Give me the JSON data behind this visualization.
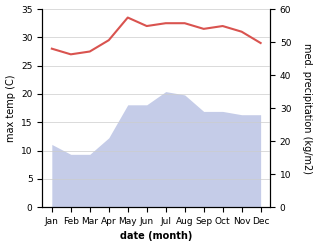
{
  "months": [
    "Jan",
    "Feb",
    "Mar",
    "Apr",
    "May",
    "Jun",
    "Jul",
    "Aug",
    "Sep",
    "Oct",
    "Nov",
    "Dec"
  ],
  "month_x": [
    0,
    1,
    2,
    3,
    4,
    5,
    6,
    7,
    8,
    9,
    10,
    11
  ],
  "temperature": [
    28.0,
    27.0,
    27.5,
    29.5,
    33.5,
    32.0,
    32.5,
    32.5,
    31.5,
    32.0,
    31.0,
    29.0
  ],
  "precipitation": [
    19,
    16,
    16,
    21,
    31,
    31,
    35,
    34,
    29,
    29,
    28,
    28
  ],
  "temp_color": "#d9534f",
  "precip_fill_color": "#c5cce8",
  "ylabel_left": "max temp (C)",
  "ylabel_right": "med. precipitation (kg/m2)",
  "xlabel": "date (month)",
  "ylim_left": [
    0,
    35
  ],
  "ylim_right": [
    0,
    60
  ],
  "background_color": "#ffffff",
  "grid_color": "#cccccc",
  "axis_fontsize": 7,
  "tick_fontsize": 6.5
}
